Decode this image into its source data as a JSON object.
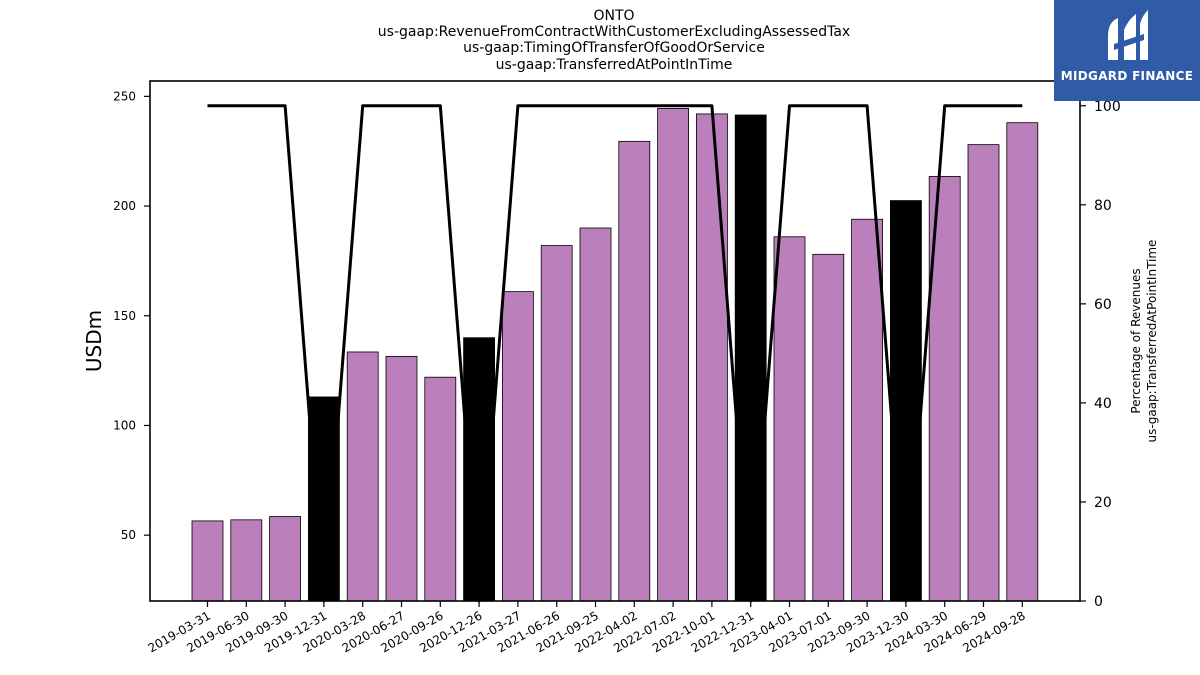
{
  "chart_data": {
    "type": "bar",
    "title": "ONTO",
    "subtitle": [
      "us-gaap:RevenueFromContractWithCustomerExcludingAssessedTax",
      "us-gaap:TimingOfTransferOfGoodOrService",
      "us-gaap:TransferredAtPointInTime"
    ],
    "ylabel": "USDm",
    "ylabel_right": [
      "Percentage of Revenues",
      "us-gaap:TransferredAtPointInTime"
    ],
    "ylim": [
      20,
      257
    ],
    "ylim_right": [
      0,
      105
    ],
    "yticks": [
      50,
      100,
      150,
      200,
      250
    ],
    "yticks_right": [
      0,
      20,
      40,
      60,
      80,
      100
    ],
    "categories": [
      "2019-03-31",
      "2019-06-30",
      "2019-09-30",
      "2019-12-31",
      "2020-03-28",
      "2020-06-27",
      "2020-09-26",
      "2020-12-26",
      "2021-03-27",
      "2021-06-26",
      "2021-09-25",
      "2022-04-02",
      "2022-07-02",
      "2022-10-01",
      "2022-12-31",
      "2023-04-01",
      "2023-07-01",
      "2023-09-30",
      "2023-12-30",
      "2024-03-30",
      "2024-06-29",
      "2024-09-28"
    ],
    "series": [
      {
        "type": "bar",
        "values": [
          56.5,
          57,
          58.5,
          113,
          133.5,
          131.5,
          122,
          140,
          161,
          182,
          190,
          229.5,
          244.5,
          242,
          241.5,
          186,
          178,
          194,
          202.5,
          213.5,
          228,
          238
        ],
        "colors": [
          "#bb7fbc",
          "#bb7fbc",
          "#bb7fbc",
          "#000000",
          "#bb7fbc",
          "#bb7fbc",
          "#bb7fbc",
          "#000000",
          "#bb7fbc",
          "#bb7fbc",
          "#bb7fbc",
          "#bb7fbc",
          "#bb7fbc",
          "#bb7fbc",
          "#000000",
          "#bb7fbc",
          "#bb7fbc",
          "#bb7fbc",
          "#000000",
          "#bb7fbc",
          "#bb7fbc",
          "#bb7fbc"
        ]
      },
      {
        "type": "line",
        "axis": "right",
        "values": [
          100,
          100,
          100,
          null,
          100,
          100,
          100,
          null,
          100,
          100,
          100,
          100,
          100,
          100,
          null,
          100,
          100,
          100,
          null,
          100,
          100,
          100
        ],
        "color": "#000000"
      }
    ],
    "grid": false
  },
  "logo": {
    "text": "MIDGARD FINANCE"
  }
}
